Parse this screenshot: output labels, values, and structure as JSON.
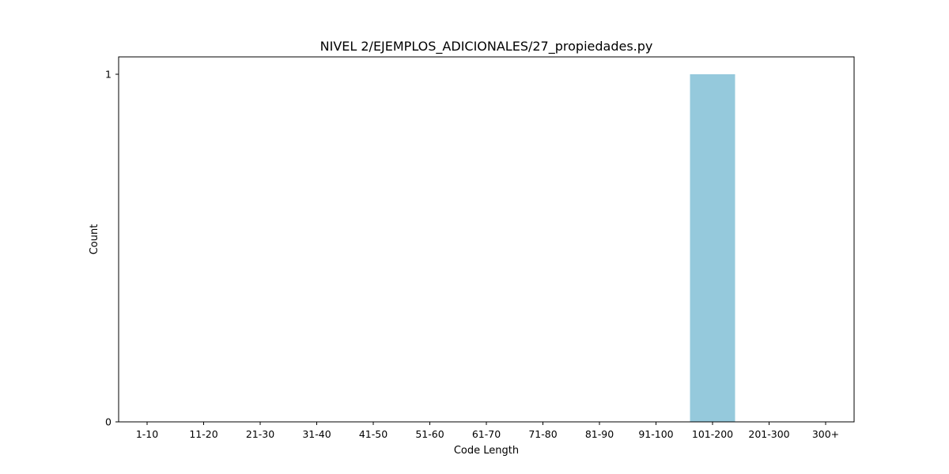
{
  "chart_data": {
    "type": "bar",
    "title": "NIVEL 2/EJEMPLOS_ADICIONALES/27_propiedades.py",
    "xlabel": "Code Length",
    "ylabel": "Count",
    "categories": [
      "1-10",
      "11-20",
      "21-30",
      "31-40",
      "41-50",
      "51-60",
      "61-70",
      "71-80",
      "81-90",
      "91-100",
      "101-200",
      "201-300",
      "300+"
    ],
    "values": [
      0,
      0,
      0,
      0,
      0,
      0,
      0,
      0,
      0,
      0,
      1,
      0,
      0
    ],
    "ylim": [
      0,
      1
    ],
    "yticks": [
      0,
      1
    ],
    "grid": false,
    "bar_color": "#95c9dc"
  }
}
